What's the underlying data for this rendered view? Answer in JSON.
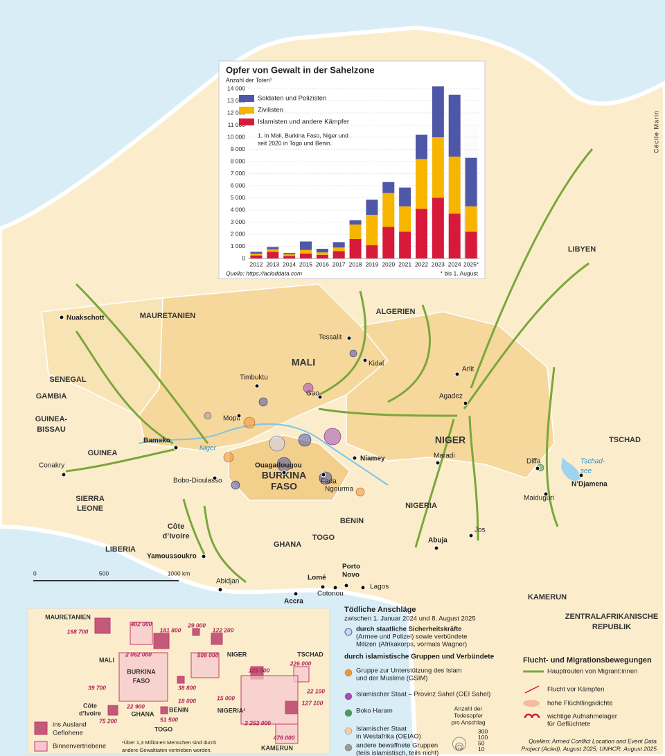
{
  "chart_data": {
    "type": "bar",
    "stacked": true,
    "title": "Opfer von Gewalt in der Sahelzone",
    "subtitle": "Anzahl der Toten¹",
    "note": [
      "1. In Mali, Burkina Faso, Niger und",
      "seit 2020 in Togo und Benin."
    ],
    "source": "Quelle: https://acleddata.com",
    "footnote": "* bis 1. August",
    "categories": [
      "2012",
      "2013",
      "2014",
      "2015",
      "2016",
      "2017",
      "2018",
      "2019",
      "2020",
      "2021",
      "2022",
      "2023",
      "2024",
      "2025*"
    ],
    "series": [
      {
        "name": "Soldaten und Polizisten",
        "color": "#4f57a8",
        "values": [
          150,
          200,
          100,
          700,
          300,
          450,
          350,
          1250,
          900,
          1550,
          2000,
          4200,
          5100,
          4000
        ]
      },
      {
        "name": "Zivilisten",
        "color": "#f7b500",
        "values": [
          150,
          200,
          150,
          300,
          200,
          300,
          1200,
          2500,
          2800,
          2100,
          4100,
          5000,
          4700,
          2100
        ]
      },
      {
        "name": "Islamisten und andere Kämpfer",
        "color": "#d7193a",
        "values": [
          250,
          550,
          200,
          400,
          300,
          600,
          1600,
          1100,
          2600,
          2200,
          4100,
          5000,
          3700,
          2200
        ]
      }
    ],
    "ylim": [
      0,
      14400
    ],
    "yticks": [
      0,
      {
        "value": 1000,
        "label": "1 000"
      },
      {
        "value": 2000,
        "label": "2 000"
      },
      {
        "value": 3000,
        "label": "3 000"
      },
      {
        "value": 4000,
        "label": "4 000"
      },
      {
        "value": 5000,
        "label": "5 000"
      },
      {
        "value": 6000,
        "label": "6 000"
      },
      {
        "value": 7000,
        "label": "7 000"
      },
      {
        "value": 8000,
        "label": "8 000"
      },
      {
        "value": 9000,
        "label": "9 000"
      },
      {
        "value": 10000,
        "label": "10 000"
      },
      {
        "value": 11000,
        "label": "11 000"
      },
      {
        "value": 12000,
        "label": "12 000"
      },
      {
        "value": 13000,
        "label": "13 000"
      },
      {
        "value": 14000,
        "label": "14 000"
      }
    ],
    "grid": true
  },
  "map": {
    "credit": "Cécile Marin",
    "countries": [
      "MAURETANIEN",
      "MALI",
      "ALGERIEN",
      "LIBYEN",
      "SENEGAL",
      "GAMBIA",
      "GUINEA-",
      "BISSAU",
      "GUINEA",
      "SIERRA",
      "LEONE",
      "Côte",
      "d’Ivoire",
      "LIBERIA",
      "BURKINA",
      "FASO",
      "GHANA",
      "TOGO",
      "BENIN",
      "NIGERIA",
      "NIGER",
      "TSCHAD",
      "KAMERUN",
      "ZENTRALAFRIKANISCHE",
      "REPUBLIK"
    ],
    "cities": [
      "Nuakschott",
      "Tessalit",
      "Kidal",
      "Timbuktu",
      "Gao",
      "Arlit",
      "Agadez",
      "Mopti",
      "Bamako",
      "Niamey",
      "Conakry",
      "Maradi",
      "Diffa",
      "N’Djamena",
      "Ouagadougou",
      "Bobo-Dioulasso",
      "Fada",
      "Ngourma",
      "Maiduguri",
      "Jos",
      "Abuja",
      "Yamoussoukro",
      "Abidjan",
      "Lomé",
      "Porto",
      "Novo",
      "Accra",
      "Cotonou",
      "Lagos"
    ],
    "waters": [
      "Niger",
      "Tschad-",
      "see"
    ],
    "scale": [
      "0",
      "500",
      "1000 km"
    ]
  },
  "inset": {
    "countries": [
      "MAURETANIEN",
      "MALI",
      "BURKINA",
      "FASO",
      "NIGER",
      "TSCHAD",
      "Côte",
      "d’Ivoire",
      "GHANA",
      "BENIN",
      "NIGERIA¹",
      "TOGO",
      "KAMERUN"
    ],
    "figures": [
      "168 700",
      "402 000",
      "181 800",
      "29 000",
      "122 200",
      "2 062 000",
      "508 000",
      "226 000",
      "39 700",
      "38 800",
      "125 500",
      "18 000",
      "15 000",
      "22 100",
      "127 100",
      "22 900",
      "75 200",
      "51 500",
      "2 252 000",
      "476 000"
    ],
    "legend": [
      "ins Ausland",
      "Geflohene",
      "Binnenvertriebene"
    ],
    "footnote": [
      "¹Über 1,3 Millionen Menschen sind durch",
      "andere Gewalttaten vertrieben worden."
    ]
  },
  "legend": {
    "title": "Tödliche Anschläge",
    "period": "zwischen 1. Januar 2024 und 8. August 2025",
    "state": {
      "lines": [
        "durch staatliche Sicherheitskräfte",
        "(Armee und Polizei) sowie verbündete",
        "Milizen (Afrikakorps, vormals Wagner)"
      ],
      "color": "#cdd6f0"
    },
    "islamist_heading": "durch islamistische Gruppen und Verbündete",
    "groups": [
      {
        "lines": [
          "Gruppe zur Unterstützung des Islam",
          "und der Muslime (GSIM)"
        ],
        "color": "#f0963c"
      },
      {
        "lines": [
          "Islamischer Staat – Provinz Sahel (OEI Sahel)"
        ],
        "color": "#a04fb0"
      },
      {
        "lines": [
          "Boko Haram"
        ],
        "color": "#4a9a5a"
      },
      {
        "lines": [
          "Islamischer Staat",
          "in Westafrika (OEIAO)"
        ],
        "color": "#f3cda5"
      },
      {
        "lines": [
          "andere bewaffnete Gruppen",
          "(teils islamistisch, teils nicht)"
        ],
        "color": "#9a9a9a"
      }
    ],
    "size_title": [
      "Anzahl der",
      "Todesopfer",
      "pro Anschlag"
    ],
    "sizes": [
      300,
      100,
      50,
      10
    ]
  },
  "migration": {
    "title": "Flucht- und Migrationsbewegungen",
    "items": [
      [
        "Hauptrouten von Migrant:innen"
      ],
      [
        "Flucht vor Kämpfen"
      ],
      [
        "hohe Flüchtlingsdichte"
      ],
      [
        "wichtige Aufnahmelager",
        "für Geflüchtete"
      ]
    ]
  },
  "sources": [
    "Quellen: Armed Conflict Location and Event Data",
    "Project (Acled), August 2025; UNHCR, August 2025"
  ]
}
